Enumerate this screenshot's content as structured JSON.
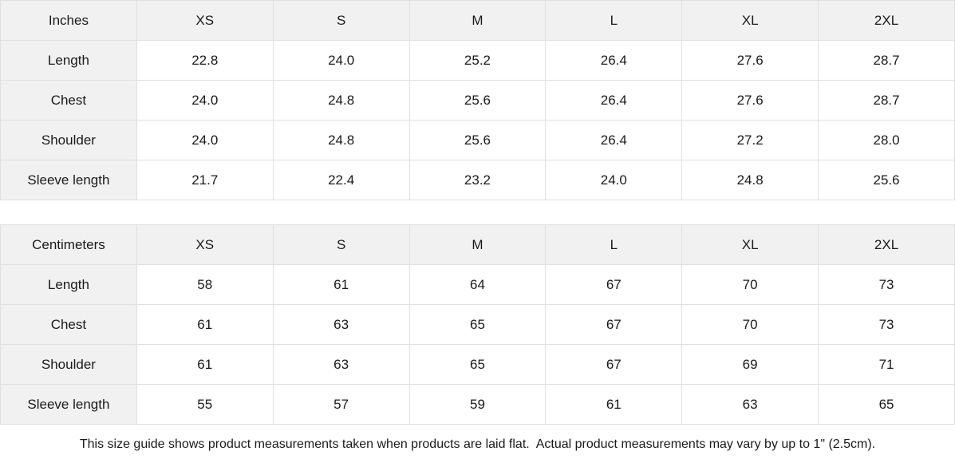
{
  "tables": [
    {
      "unit_label": "Inches",
      "sizes": [
        "XS",
        "S",
        "M",
        "L",
        "XL",
        "2XL"
      ],
      "rows": [
        {
          "label": "Length",
          "values": [
            "22.8",
            "24.0",
            "25.2",
            "26.4",
            "27.6",
            "28.7"
          ]
        },
        {
          "label": "Chest",
          "values": [
            "24.0",
            "24.8",
            "25.6",
            "26.4",
            "27.6",
            "28.7"
          ]
        },
        {
          "label": "Shoulder",
          "values": [
            "24.0",
            "24.8",
            "25.6",
            "26.4",
            "27.2",
            "28.0"
          ]
        },
        {
          "label": "Sleeve length",
          "values": [
            "21.7",
            "22.4",
            "23.2",
            "24.0",
            "24.8",
            "25.6"
          ]
        }
      ]
    },
    {
      "unit_label": "Centimeters",
      "sizes": [
        "XS",
        "S",
        "M",
        "L",
        "XL",
        "2XL"
      ],
      "rows": [
        {
          "label": "Length",
          "values": [
            "58",
            "61",
            "64",
            "67",
            "70",
            "73"
          ]
        },
        {
          "label": "Chest",
          "values": [
            "61",
            "63",
            "65",
            "67",
            "70",
            "73"
          ]
        },
        {
          "label": "Shoulder",
          "values": [
            "61",
            "63",
            "65",
            "67",
            "69",
            "71"
          ]
        },
        {
          "label": "Sleeve length",
          "values": [
            "55",
            "57",
            "59",
            "61",
            "63",
            "65"
          ]
        }
      ]
    }
  ],
  "footer": {
    "note": "This size guide shows product measurements taken when products are laid flat.  Actual product measurements may vary by up to 1\" (2.5cm)."
  },
  "colors": {
    "header_bg": "#f1f1f1",
    "border": "#e0e0e0",
    "text": "#1a1a1a"
  }
}
